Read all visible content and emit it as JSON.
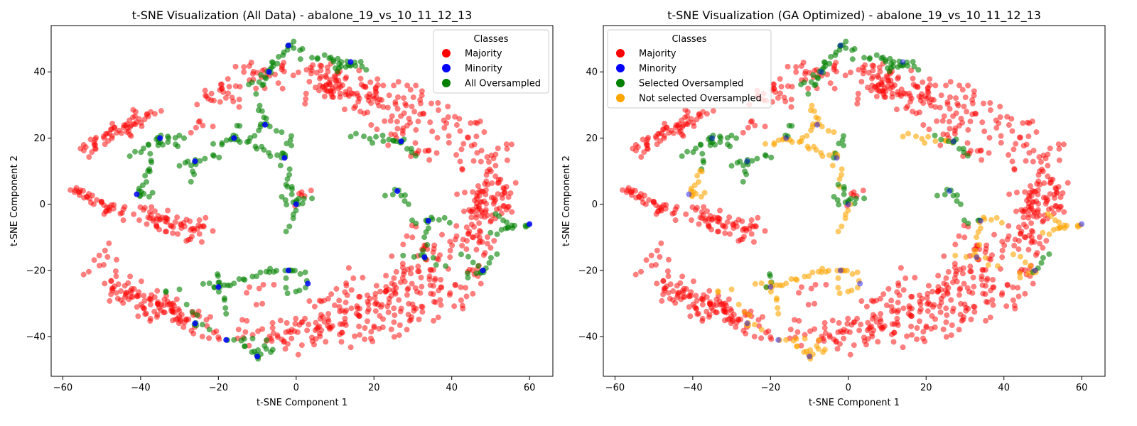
{
  "chart_data": [
    {
      "type": "scatter",
      "title": "t-SNE Visualization (All Data) - abalone_19_vs_10_11_12_13",
      "xlabel": "t-SNE Component 1",
      "ylabel": "t-SNE Component 2",
      "xlim": [
        -63,
        66
      ],
      "ylim": [
        -52,
        54
      ],
      "xticks": [
        -60,
        -40,
        -20,
        0,
        20,
        40,
        60
      ],
      "yticks": [
        -40,
        -20,
        0,
        20,
        40
      ],
      "xtick_labels": [
        "−60",
        "−40",
        "−20",
        "0",
        "20",
        "40",
        "60"
      ],
      "ytick_labels": [
        "−40",
        "−20",
        "0",
        "20",
        "40"
      ],
      "grid": false,
      "legend": {
        "title": "Classes",
        "placement": "top-right",
        "entries": [
          {
            "label": "Majority",
            "color": "#ff0000"
          },
          {
            "label": "Minority",
            "color": "#0000ff"
          },
          {
            "label": "All Oversampled",
            "color": "#008000"
          }
        ]
      }
    },
    {
      "type": "scatter",
      "title": "t-SNE Visualization (GA Optimized) - abalone_19_vs_10_11_12_13",
      "xlabel": "t-SNE Component 1",
      "ylabel": "t-SNE Component 2",
      "xlim": [
        -63,
        66
      ],
      "ylim": [
        -52,
        54
      ],
      "xticks": [
        -60,
        -40,
        -20,
        0,
        20,
        40,
        60
      ],
      "yticks": [
        -40,
        -20,
        0,
        20,
        40
      ],
      "xtick_labels": [
        "−60",
        "−40",
        "−20",
        "0",
        "20",
        "40",
        "60"
      ],
      "ytick_labels": [
        "−40",
        "−20",
        "0",
        "20",
        "40"
      ],
      "grid": false,
      "legend": {
        "title": "Classes",
        "placement": "top-left",
        "entries": [
          {
            "label": "Majority",
            "color": "#ff0000"
          },
          {
            "label": "Minority",
            "color": "#0000ff"
          },
          {
            "label": "Selected Oversampled",
            "color": "#008000"
          },
          {
            "label": "Not selected Oversampled",
            "color": "#ffa500"
          }
        ]
      }
    }
  ],
  "points": {
    "minority": [
      [
        -2,
        48
      ],
      [
        14,
        43
      ],
      [
        -7,
        40
      ],
      [
        -8,
        24
      ],
      [
        -16,
        20
      ],
      [
        -35,
        20
      ],
      [
        -3,
        14
      ],
      [
        -26,
        13
      ],
      [
        27,
        19
      ],
      [
        -41,
        3
      ],
      [
        26,
        4
      ],
      [
        0,
        0
      ],
      [
        34,
        -5
      ],
      [
        60,
        -6
      ],
      [
        33,
        -16
      ],
      [
        -2,
        -20
      ],
      [
        3,
        -24
      ],
      [
        48,
        -20
      ],
      [
        -20,
        -25
      ],
      [
        -26,
        -36
      ],
      [
        -18,
        -41
      ],
      [
        -10,
        -46
      ]
    ],
    "majority_arcs": [
      {
        "cx": 0,
        "cy": -2,
        "rx": 55,
        "ry": 38,
        "a0": 200,
        "a1": 330,
        "n": 160,
        "spread": 2.5
      },
      {
        "cx": 5,
        "cy": 0,
        "rx": 48,
        "ry": 36,
        "a0": 15,
        "a1": 90,
        "n": 110,
        "spread": 3
      },
      {
        "cx": 5,
        "cy": 0,
        "rx": 43,
        "ry": 26,
        "a0": 340,
        "a1": 375,
        "n": 70,
        "spread": 3
      }
    ],
    "majority_segments": [
      {
        "x0": -55,
        "y0": 16,
        "x1": -37,
        "y1": 28,
        "n": 60,
        "spread": 1.3
      },
      {
        "x0": -57,
        "y0": 4,
        "x1": -48,
        "y1": -2,
        "n": 25,
        "spread": 1
      },
      {
        "x0": -48,
        "y0": -1,
        "x1": -25,
        "y1": -8,
        "n": 75,
        "spread": 2
      },
      {
        "x0": -47,
        "y0": -25,
        "x1": -32,
        "y1": -32,
        "n": 55,
        "spread": 2
      },
      {
        "x0": -33,
        "y0": -33,
        "x1": -22,
        "y1": -34,
        "n": 15,
        "spread": 1.5
      },
      {
        "x0": -25,
        "y0": 31,
        "x1": -10,
        "y1": 38,
        "n": 35,
        "spread": 2.5
      },
      {
        "x0": -12,
        "y0": 38,
        "x1": 5,
        "y1": 40,
        "n": 25,
        "spread": 2
      },
      {
        "x0": 5,
        "y0": 38,
        "x1": 22,
        "y1": 30,
        "n": 60,
        "spread": 3
      },
      {
        "x0": 22,
        "y0": 30,
        "x1": 32,
        "y1": 15,
        "n": 30,
        "spread": 3
      },
      {
        "x0": 12,
        "y0": -30,
        "x1": 32,
        "y1": -25,
        "n": 80,
        "spread": 4
      },
      {
        "x0": 28,
        "y0": -10,
        "x1": 35,
        "y1": -25,
        "n": 40,
        "spread": 3.5
      },
      {
        "x0": 2,
        "y0": -38,
        "x1": 14,
        "y1": -35,
        "n": 30,
        "spread": 2
      },
      {
        "x0": 38,
        "y0": -15,
        "x1": 48,
        "y1": -8,
        "n": 25,
        "spread": 2.5
      },
      {
        "x0": 50,
        "y0": 10,
        "x1": 55,
        "y1": -2,
        "n": 20,
        "spread": 1.5
      },
      {
        "x0": -10,
        "y0": -26,
        "x1": -8,
        "y1": -26,
        "n": 6,
        "spread": 2
      },
      {
        "x0": 5,
        "y0": -30,
        "x1": 8,
        "y1": -36,
        "n": 8,
        "spread": 1.5
      },
      {
        "x0": -4,
        "y0": -36,
        "x1": -1,
        "y1": -40,
        "n": 6,
        "spread": 1
      },
      {
        "x0": -28,
        "y0": 22,
        "x1": -20,
        "y1": 26,
        "n": 6,
        "spread": 1.5
      },
      {
        "x0": -2,
        "y0": 2,
        "x1": 3,
        "y1": 4,
        "n": 6,
        "spread": 1.2
      }
    ],
    "oversampled_segments": [
      {
        "x0": -2,
        "y0": 48,
        "x1": -7,
        "y1": 40,
        "n": 12,
        "sel": true
      },
      {
        "x0": -2,
        "y0": 48,
        "x1": 2,
        "y1": 47,
        "n": 5,
        "sel": true
      },
      {
        "x0": -12,
        "y0": 36,
        "x1": -7,
        "y1": 40,
        "n": 6,
        "sel": true
      },
      {
        "x0": -7,
        "y0": 40,
        "x1": -10,
        "y1": 34,
        "n": 5,
        "sel": true
      },
      {
        "x0": 14,
        "y0": 43,
        "x1": 10,
        "y1": 40,
        "n": 7,
        "sel": true
      },
      {
        "x0": 14,
        "y0": 43,
        "x1": 18,
        "y1": 41,
        "n": 6,
        "sel": true
      },
      {
        "x0": 8,
        "y0": 44,
        "x1": 14,
        "y1": 43,
        "n": 6,
        "sel": true
      },
      {
        "x0": 6,
        "y0": 44,
        "x1": 10,
        "y1": 44,
        "n": 3,
        "sel": true
      },
      {
        "x0": -35,
        "y0": 20,
        "x1": -42,
        "y1": 15,
        "n": 8,
        "sel": true
      },
      {
        "x0": -35,
        "y0": 20,
        "x1": -28,
        "y1": 21,
        "n": 6,
        "sel": true
      },
      {
        "x0": -35,
        "y0": 20,
        "x1": -38,
        "y1": 11,
        "n": 7,
        "sel": true
      },
      {
        "x0": -35,
        "y0": 20,
        "x1": -31,
        "y1": 17,
        "n": 5,
        "sel": true
      },
      {
        "x0": -26,
        "y0": 13,
        "x1": -20,
        "y1": 15,
        "n": 6,
        "sel": true
      },
      {
        "x0": -26,
        "y0": 13,
        "x1": -27,
        "y1": 7,
        "n": 5,
        "sel": true
      },
      {
        "x0": -26,
        "y0": 13,
        "x1": -30,
        "y1": 12,
        "n": 4,
        "sel": true
      },
      {
        "x0": -41,
        "y0": 3,
        "x1": -38,
        "y1": 10,
        "n": 8,
        "sel": false
      },
      {
        "x0": -41,
        "y0": 3,
        "x1": -37,
        "y1": 3,
        "n": 5,
        "sel": false
      },
      {
        "x0": -16,
        "y0": 20,
        "x1": -20,
        "y1": 18,
        "n": 6,
        "sel": false
      },
      {
        "x0": -16,
        "y0": 20,
        "x1": -15,
        "y1": 24,
        "n": 4,
        "sel": true
      },
      {
        "x0": -16,
        "y0": 20,
        "x1": -8,
        "y1": 17,
        "n": 8,
        "sel": false
      },
      {
        "x0": -8,
        "y0": 24,
        "x1": -9,
        "y1": 30,
        "n": 6,
        "sel": false
      },
      {
        "x0": -8,
        "y0": 24,
        "x1": -4,
        "y1": 22,
        "n": 4,
        "sel": false
      },
      {
        "x0": -8,
        "y0": 24,
        "x1": -12,
        "y1": 20,
        "n": 5,
        "sel": false
      },
      {
        "x0": -3,
        "y0": 14,
        "x1": -8,
        "y1": 16,
        "n": 6,
        "sel": false
      },
      {
        "x0": -3,
        "y0": 14,
        "x1": -1,
        "y1": 21,
        "n": 6,
        "sel": true
      },
      {
        "x0": -3,
        "y0": 14,
        "x1": -2,
        "y1": 6,
        "n": 6,
        "sel": false
      },
      {
        "x0": 0,
        "y0": 0,
        "x1": -2,
        "y1": 6,
        "n": 6,
        "sel": true
      },
      {
        "x0": 0,
        "y0": 0,
        "x1": -4,
        "y1": 2,
        "n": 4,
        "sel": true
      },
      {
        "x0": 0,
        "y0": 0,
        "x1": 4,
        "y1": 2,
        "n": 4,
        "sel": true
      },
      {
        "x0": 0,
        "y0": 0,
        "x1": -2,
        "y1": -8,
        "n": 6,
        "sel": false
      },
      {
        "x0": 27,
        "y0": 19,
        "x1": 30,
        "y1": 15,
        "n": 6,
        "sel": true
      },
      {
        "x0": 27,
        "y0": 19,
        "x1": 14,
        "y1": 21,
        "n": 10,
        "sel": false
      },
      {
        "x0": 27,
        "y0": 19,
        "x1": 23,
        "y1": 20,
        "n": 4,
        "sel": true
      },
      {
        "x0": 26,
        "y0": 4,
        "x1": 29,
        "y1": 0,
        "n": 5,
        "sel": true
      },
      {
        "x0": 26,
        "y0": 4,
        "x1": 24,
        "y1": 2,
        "n": 3,
        "sel": true
      },
      {
        "x0": 34,
        "y0": -5,
        "x1": 39,
        "y1": -5,
        "n": 5,
        "sel": false
      },
      {
        "x0": 34,
        "y0": -5,
        "x1": 30,
        "y1": -5,
        "n": 4,
        "sel": true
      },
      {
        "x0": 34,
        "y0": -5,
        "x1": 33,
        "y1": -14,
        "n": 6,
        "sel": false
      },
      {
        "x0": 33,
        "y0": -16,
        "x1": 28,
        "y1": -15,
        "n": 4,
        "sel": false
      },
      {
        "x0": 33,
        "y0": -16,
        "x1": 38,
        "y1": -19,
        "n": 4,
        "sel": false
      },
      {
        "x0": 60,
        "y0": -6,
        "x1": 54,
        "y1": -7,
        "n": 7,
        "sel": false
      },
      {
        "x0": 54,
        "y0": -7,
        "x1": 51,
        "y1": -2,
        "n": 5,
        "sel": false
      },
      {
        "x0": 54,
        "y0": -7,
        "x1": 50,
        "y1": -9,
        "n": 4,
        "sel": false
      },
      {
        "x0": 48,
        "y0": -20,
        "x1": 44,
        "y1": -22,
        "n": 5,
        "sel": false
      },
      {
        "x0": 48,
        "y0": -20,
        "x1": 51,
        "y1": -15,
        "n": 5,
        "sel": true
      },
      {
        "x0": 48,
        "y0": -20,
        "x1": 42,
        "y1": -15,
        "n": 5,
        "sel": false
      },
      {
        "x0": -2,
        "y0": -20,
        "x1": -8,
        "y1": -20,
        "n": 6,
        "sel": false
      },
      {
        "x0": -2,
        "y0": -20,
        "x1": 2,
        "y1": -21,
        "n": 5,
        "sel": false
      },
      {
        "x0": 3,
        "y0": -24,
        "x1": 0,
        "y1": -26,
        "n": 4,
        "sel": false
      },
      {
        "x0": -2,
        "y0": -20,
        "x1": -3,
        "y1": -27,
        "n": 4,
        "sel": false
      },
      {
        "x0": -20,
        "y0": -25,
        "x1": -8,
        "y1": -21,
        "n": 12,
        "sel": false
      },
      {
        "x0": -20,
        "y0": -25,
        "x1": -24,
        "y1": -25,
        "n": 4,
        "sel": false
      },
      {
        "x0": -20,
        "y0": -25,
        "x1": -21,
        "y1": -21,
        "n": 4,
        "sel": true
      },
      {
        "x0": -20,
        "y0": -25,
        "x1": -17,
        "y1": -33,
        "n": 6,
        "sel": false
      },
      {
        "x0": -26,
        "y0": -36,
        "x1": -28,
        "y1": -31,
        "n": 4,
        "sel": false
      },
      {
        "x0": -26,
        "y0": -36,
        "x1": -23,
        "y1": -38,
        "n": 4,
        "sel": false
      },
      {
        "x0": -18,
        "y0": -41,
        "x1": -12,
        "y1": -41,
        "n": 5,
        "sel": false
      },
      {
        "x0": -10,
        "y0": -46,
        "x1": -14,
        "y1": -43,
        "n": 5,
        "sel": false
      },
      {
        "x0": -10,
        "y0": -46,
        "x1": -6,
        "y1": -44,
        "n": 5,
        "sel": false
      },
      {
        "x0": -10,
        "y0": -46,
        "x1": -8,
        "y1": -41,
        "n": 4,
        "sel": false
      },
      {
        "x0": -34,
        "y0": -26,
        "x1": -30,
        "y1": -26,
        "n": 3,
        "sel": false
      },
      {
        "x0": 8,
        "y0": 44,
        "x1": 2,
        "y1": 44,
        "n": 4,
        "sel": true
      }
    ]
  }
}
